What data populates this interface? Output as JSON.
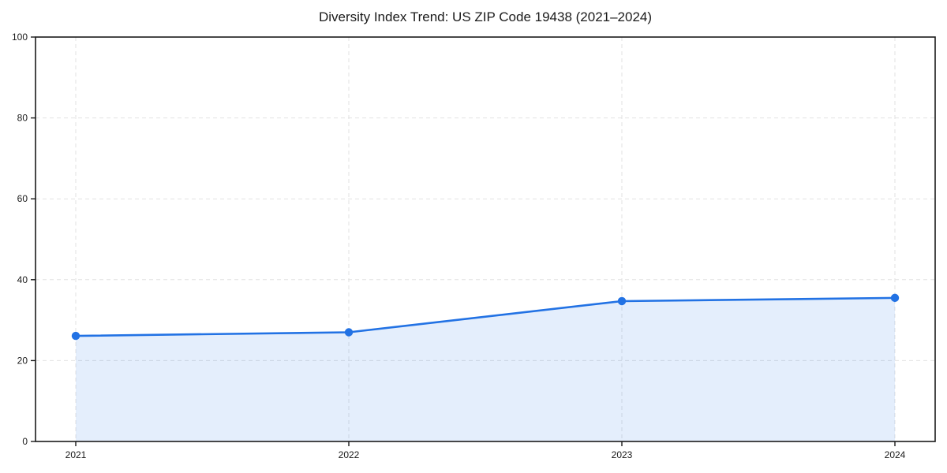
{
  "page": {
    "background": "#ffffff"
  },
  "chart_data": {
    "type": "area",
    "title": "Diversity Index Trend: US ZIP Code 19438 (2021–2024)",
    "categories": [
      "2021",
      "2022",
      "2023",
      "2024"
    ],
    "series": [
      {
        "name": "Diversity Index",
        "values": [
          26.1,
          27.0,
          34.7,
          35.5
        ]
      }
    ],
    "xlabel": "",
    "ylabel": "",
    "ylim": [
      0,
      100
    ],
    "y_ticks": [
      0,
      20,
      40,
      60,
      80,
      100
    ],
    "grid": "dashed",
    "legend": "none",
    "marker": "circle",
    "colors": {
      "line": "#2272e4",
      "marker": "#2272e4",
      "fill": "rgba(34,114,228,0.12)",
      "grid": "#e2e2e2",
      "axis": "#1a1a1a",
      "text": "#1a1a1a"
    }
  }
}
